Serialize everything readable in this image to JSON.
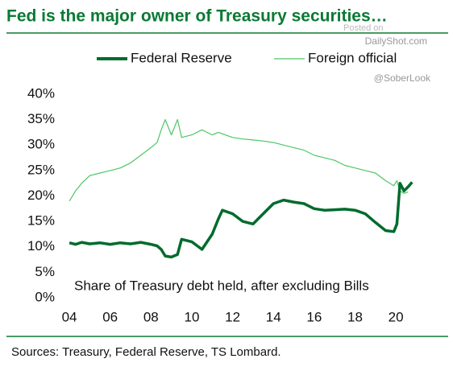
{
  "chart_data": {
    "type": "line",
    "title": "Fed is the major owner of Treasury securities…",
    "annotations": [
      "Share of Treasury debt held, after excluding Bills",
      "Posted on",
      "DailyShot.com",
      "@SoberLook"
    ],
    "source": "Sources: Treasury, Federal Reserve, TS Lombard.",
    "x": [
      2004,
      2004.3,
      2004.6,
      2005,
      2005.5,
      2006,
      2006.5,
      2007,
      2007.5,
      2008,
      2008.3,
      2008.5,
      2008.7,
      2009,
      2009.3,
      2009.5,
      2010,
      2010.5,
      2011,
      2011.3,
      2011.5,
      2012,
      2012.5,
      2013,
      2013.5,
      2014,
      2014.5,
      2015,
      2015.5,
      2016,
      2016.5,
      2017,
      2017.5,
      2018,
      2018.5,
      2019,
      2019.5,
      2019.9,
      2020.05,
      2020.2,
      2020.4,
      2020.6,
      2020.8
    ],
    "series": [
      {
        "name": "Federal Reserve",
        "color": "#006b2c",
        "values": [
          10.8,
          10.5,
          10.9,
          10.6,
          10.8,
          10.5,
          10.8,
          10.6,
          10.9,
          10.5,
          10.2,
          9.5,
          8.2,
          8.0,
          8.5,
          11.5,
          11.0,
          9.5,
          12.5,
          15.5,
          17.2,
          16.5,
          15.0,
          14.5,
          16.5,
          18.5,
          19.2,
          18.8,
          18.5,
          17.5,
          17.2,
          17.3,
          17.4,
          17.2,
          16.5,
          14.8,
          13.2,
          13.0,
          14.5,
          22.5,
          21.0,
          21.8,
          22.7
        ]
      },
      {
        "name": "Foreign official",
        "color": "#4cc764",
        "values": [
          19.0,
          21.0,
          22.5,
          24.0,
          24.5,
          25.0,
          25.5,
          26.5,
          28.0,
          29.5,
          30.5,
          33.0,
          35.0,
          32.0,
          35.0,
          31.5,
          32.0,
          33.0,
          32.0,
          32.5,
          32.2,
          31.5,
          31.2,
          31.0,
          30.8,
          30.5,
          30.0,
          29.5,
          29.0,
          28.0,
          27.5,
          27.0,
          26.0,
          25.5,
          25.0,
          24.5,
          23.0,
          22.0,
          23.0,
          21.0,
          20.5,
          20.8,
          null
        ]
      }
    ],
    "xlim": [
      2003.8,
      2021.3
    ],
    "xticks": [
      {
        "value": 2004,
        "label": "04"
      },
      {
        "value": 2006,
        "label": "06"
      },
      {
        "value": 2008,
        "label": "08"
      },
      {
        "value": 2010,
        "label": "10"
      },
      {
        "value": 2012,
        "label": "12"
      },
      {
        "value": 2014,
        "label": "14"
      },
      {
        "value": 2016,
        "label": "16"
      },
      {
        "value": 2018,
        "label": "18"
      },
      {
        "value": 2020,
        "label": "20"
      }
    ],
    "ylim": [
      0,
      40
    ],
    "yticks": [
      {
        "value": 0,
        "label": "0%"
      },
      {
        "value": 5,
        "label": "5%"
      },
      {
        "value": 10,
        "label": "10%"
      },
      {
        "value": 15,
        "label": "15%"
      },
      {
        "value": 20,
        "label": "20%"
      },
      {
        "value": 25,
        "label": "25%"
      },
      {
        "value": 30,
        "label": "30%"
      },
      {
        "value": 35,
        "label": "35%"
      },
      {
        "value": 40,
        "label": "40%"
      }
    ]
  }
}
